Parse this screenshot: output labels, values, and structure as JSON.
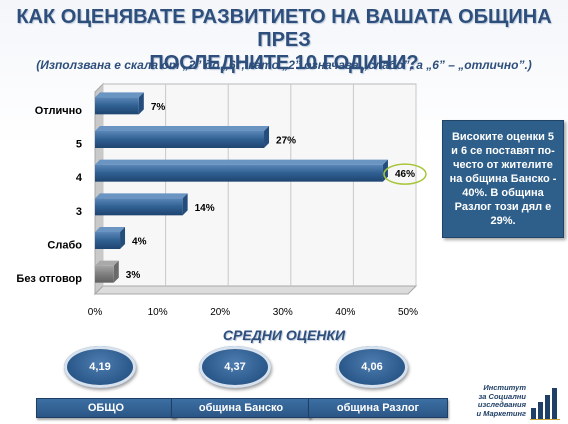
{
  "page": {
    "title_line1": "КАК ОЦЕНЯВАТЕ РАЗВИТИЕТО НА ВАШАТА ОБЩИНА ПРЕЗ",
    "title_line2": "ПОСЛЕДНИТЕ 10 ГОДИНИ?",
    "subtitle": "(Използвана е скала от „2” до „6”, като „2” означава „слабо”, а „6” – „отлично”.)"
  },
  "chart_data": {
    "type": "bar",
    "orientation": "horizontal",
    "categories": [
      "Отлично",
      "5",
      "4",
      "3",
      "Слабо",
      "Без отговор"
    ],
    "values": [
      7,
      27,
      46,
      14,
      4,
      3
    ],
    "data_labels": [
      "7%",
      "27%",
      "46%",
      "14%",
      "4%",
      "3%"
    ],
    "x_ticks": [
      "0%",
      "10%",
      "20%",
      "30%",
      "40%",
      "50%"
    ],
    "xlim": [
      0,
      50
    ],
    "grid": true,
    "highlighted_category": "4",
    "colors": {
      "bar": "#2f5f91",
      "bar_no_answer": "#7f7f7f",
      "highlight_ring": "#a8c63a"
    }
  },
  "callout": {
    "text": "Високите оценки 5 и 6 се поставят по-често от жителите на община Банско - 40%. В община Разлог този дял е 29%."
  },
  "averages": {
    "title": "СРЕДНИ ОЦЕНКИ",
    "items": [
      {
        "value": "4,19",
        "label": "ОБЩО"
      },
      {
        "value": "4,37",
        "label": "община Банско"
      },
      {
        "value": "4,06",
        "label": "община Разлог"
      }
    ]
  },
  "logo": {
    "lines": [
      "Институт",
      "за Социални",
      "изследвания",
      "и Маркетинг"
    ],
    "icon": "bar-logo-icon"
  }
}
